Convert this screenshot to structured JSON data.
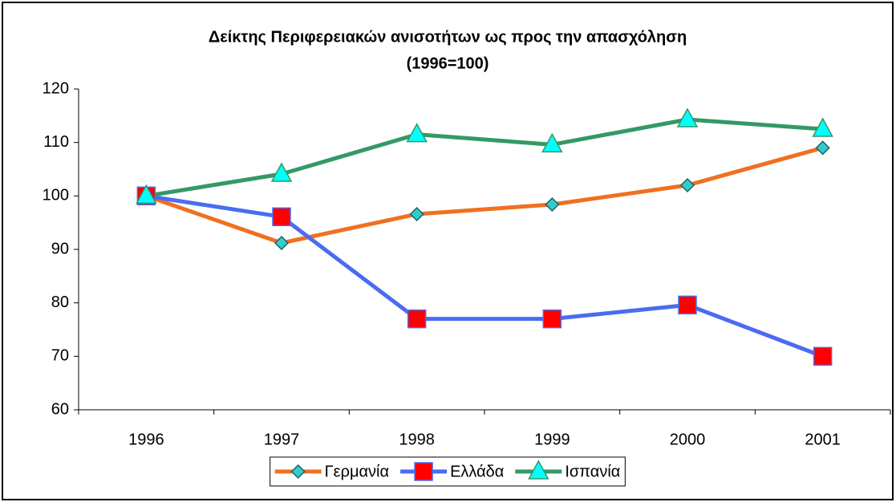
{
  "chart_data": {
    "type": "line",
    "title": "Δείκτης Περιφερειακών ανισοτήτων ως προς την απασχόληση",
    "subtitle": "(1996=100)",
    "categories": [
      "1996",
      "1997",
      "1998",
      "1999",
      "2000",
      "2001"
    ],
    "series": [
      {
        "name": "Γερμανία",
        "color": "#f07020",
        "marker": "diamond",
        "marker_color": "#33cccc",
        "values": [
          100,
          91.2,
          96.6,
          98.4,
          102,
          109
        ]
      },
      {
        "name": "Ελλάδα",
        "color": "#4a6cf0",
        "marker": "square",
        "marker_color": "#ff0000",
        "values": [
          100,
          96.1,
          77,
          77,
          79.6,
          70
        ]
      },
      {
        "name": "Ισπανία",
        "color": "#339966",
        "marker": "triangle",
        "marker_color": "#00ffff",
        "values": [
          100,
          104.1,
          111.5,
          109.6,
          114.3,
          112.5
        ]
      }
    ],
    "ylim": [
      60,
      120
    ],
    "yticks": [
      60,
      70,
      80,
      90,
      100,
      110,
      120
    ],
    "grid": false,
    "legend": "bottom"
  }
}
